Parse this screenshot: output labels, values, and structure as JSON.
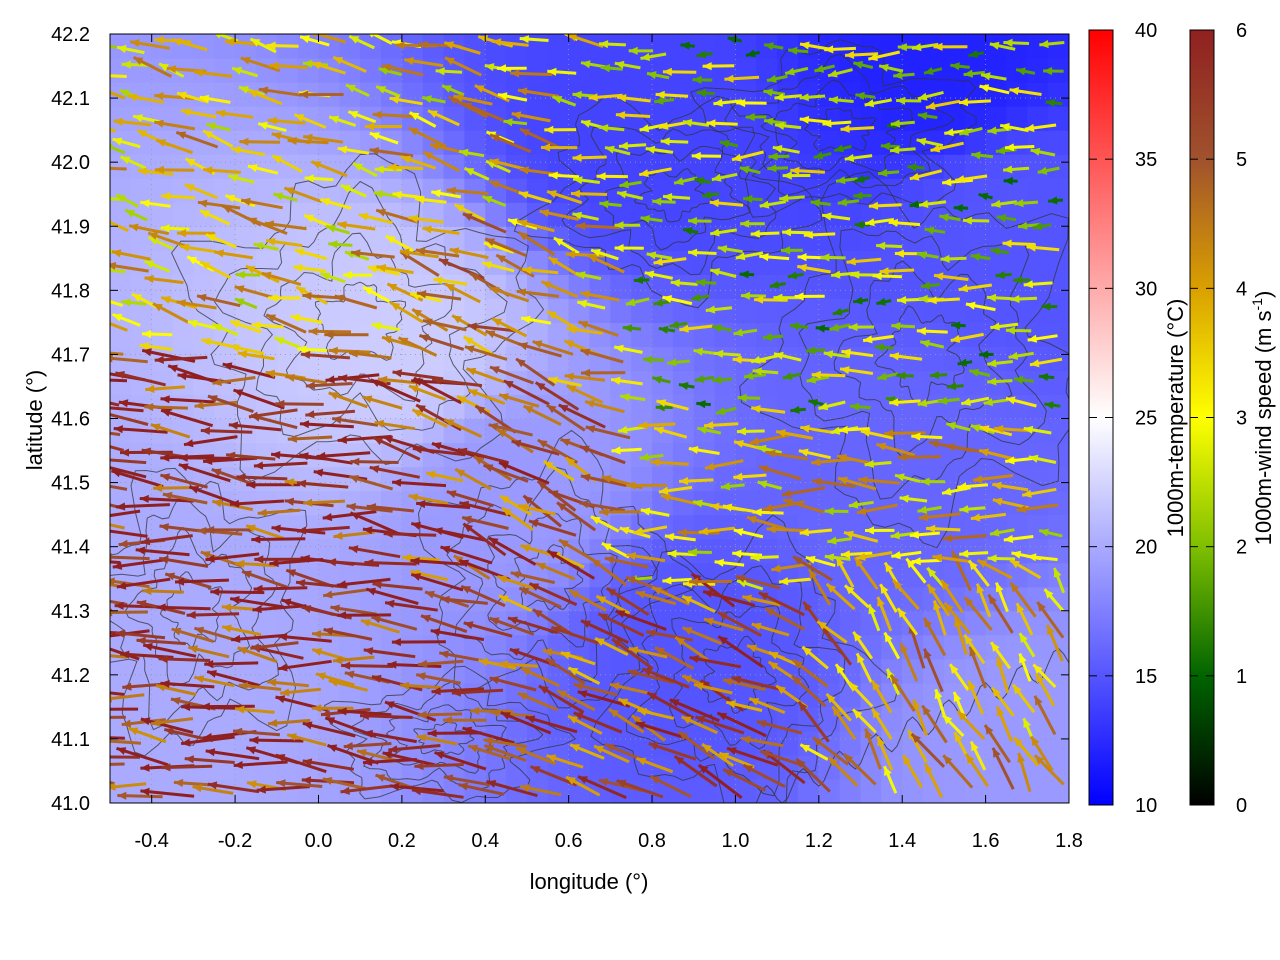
{
  "chart_data": {
    "type": "heatmap",
    "subtype": "vector-field-with-contours",
    "xlabel": "longitude (°)",
    "ylabel": "latitude (°)",
    "xlim": [
      -0.5,
      1.8
    ],
    "ylim": [
      41.0,
      42.2
    ],
    "x_ticks": [
      -0.4,
      -0.2,
      0.0,
      0.2,
      0.4,
      0.6,
      0.8,
      1.0,
      1.2,
      1.4,
      1.6,
      1.8
    ],
    "x_tick_labels": [
      "-0.4",
      "-0.2",
      "0.0",
      "0.2",
      "0.4",
      "0.6",
      "0.8",
      "1.0",
      "1.2",
      "1.4",
      "1.6",
      "1.8"
    ],
    "y_ticks": [
      41.0,
      41.1,
      41.2,
      41.3,
      41.4,
      41.5,
      41.6,
      41.7,
      41.8,
      41.9,
      42.0,
      42.1,
      42.2
    ],
    "y_tick_labels": [
      "41.0",
      "41.1",
      "41.2",
      "41.3",
      "41.4",
      "41.5",
      "41.6",
      "41.7",
      "41.8",
      "41.9",
      "42.0",
      "42.1",
      "42.2"
    ],
    "grid": true,
    "temperature_colorbar": {
      "label": "1000m-temperature (°C)",
      "range": [
        10,
        40
      ],
      "ticks": [
        10,
        15,
        20,
        25,
        30,
        35,
        40
      ],
      "tick_labels": [
        "10",
        "15",
        "20",
        "25",
        "30",
        "35",
        "40"
      ],
      "colors": [
        "#0000ff",
        "#ffffff",
        "#ff0000"
      ]
    },
    "wind_colorbar": {
      "label_main": "1000m-wind speed (m s",
      "label_sup": "-1",
      "label_end": ")",
      "range": [
        0,
        6
      ],
      "ticks": [
        0,
        1,
        2,
        3,
        4,
        5,
        6
      ],
      "tick_labels": [
        "0",
        "1",
        "2",
        "3",
        "4",
        "5",
        "6"
      ],
      "colors": [
        "#000000",
        "#006400",
        "#7fbf00",
        "#ffff00",
        "#d9a000",
        "#a0522d",
        "#902020"
      ]
    },
    "temperature_field": [
      {
        "lon": -0.4,
        "lat": 41.2,
        "t": 20
      },
      {
        "lon": 0.2,
        "lat": 41.7,
        "t": 22
      },
      {
        "lon": 0.9,
        "lat": 41.25,
        "t": 15
      },
      {
        "lon": 0.75,
        "lat": 42.05,
        "t": 14
      },
      {
        "lon": 1.5,
        "lat": 42.15,
        "t": 12
      },
      {
        "lon": 1.65,
        "lat": 41.9,
        "t": 15
      },
      {
        "lon": 1.4,
        "lat": 41.5,
        "t": 16
      },
      {
        "lon": 1.7,
        "lat": 41.1,
        "t": 19
      },
      {
        "lon": 0.45,
        "lat": 41.5,
        "t": 19
      }
    ],
    "wind_regions": [
      {
        "lon": [
          -0.5,
          0.4
        ],
        "lat": [
          41.0,
          41.7
        ],
        "u": -1.0,
        "v": 0.1,
        "speed": 5.5
      },
      {
        "lon": [
          0.2,
          0.75
        ],
        "lat": [
          41.3,
          41.9
        ],
        "u": -0.8,
        "v": 0.4,
        "speed": 5.0
      },
      {
        "lon": [
          -0.5,
          0.7
        ],
        "lat": [
          41.7,
          42.2
        ],
        "u": -1.0,
        "v": 0.25,
        "speed": 3.5
      },
      {
        "lon": [
          0.65,
          1.8
        ],
        "lat": [
          41.6,
          42.2
        ],
        "u": -1.0,
        "v": 0.0,
        "speed": 2.3
      },
      {
        "lon": [
          1.2,
          1.8
        ],
        "lat": [
          41.0,
          41.35
        ],
        "u": -0.5,
        "v": 0.85,
        "speed": 3.8
      },
      {
        "lon": [
          0.8,
          1.3
        ],
        "lat": [
          41.0,
          41.3
        ],
        "u": -0.9,
        "v": 0.4,
        "speed": 5.0
      },
      {
        "lon": [
          0.7,
          1.8
        ],
        "lat": [
          41.35,
          41.6
        ],
        "u": -1.0,
        "v": 0.05,
        "speed": 3.5
      }
    ]
  }
}
